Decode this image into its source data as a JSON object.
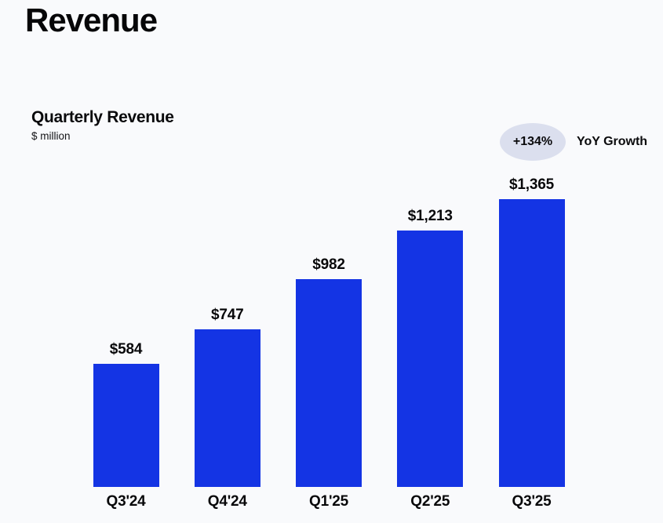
{
  "page": {
    "title": "Revenue",
    "background": "#f9fafc"
  },
  "chart_header": {
    "title": "Quarterly Revenue",
    "unit": "$ million"
  },
  "growth": {
    "badge_text": "+134%",
    "label": "YoY Growth",
    "badge_color": "#dbdfee"
  },
  "chart_data": {
    "type": "bar",
    "title": "Quarterly Revenue",
    "ylabel": "$ million",
    "categories": [
      "Q3'24",
      "Q4'24",
      "Q1'25",
      "Q2'25",
      "Q3'25"
    ],
    "values": [
      584,
      747,
      982,
      1213,
      1365
    ],
    "value_labels": [
      "$584",
      "$747",
      "$982",
      "$1,213",
      "$1,365"
    ],
    "bar_color": "#1434e4",
    "ylim": [
      0,
      1365
    ],
    "grid": false,
    "legend": false,
    "annotations": [
      {
        "text": "+134%",
        "meaning": "YoY Growth"
      }
    ]
  }
}
